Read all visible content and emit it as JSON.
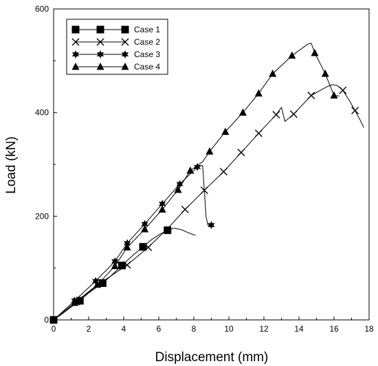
{
  "chart_data": {
    "type": "line",
    "title": "",
    "xlabel": "Displacement (mm)",
    "ylabel": "Load (kN)",
    "xlim": [
      0,
      18
    ],
    "ylim": [
      0,
      600
    ],
    "x_ticks": [
      "0",
      "2",
      "4",
      "6",
      "8",
      "10",
      "12",
      "14",
      "16",
      "18"
    ],
    "y_ticks": [
      "0",
      "200",
      "400",
      "600"
    ],
    "grid": false,
    "legend_position": "top-left",
    "series": [
      {
        "name": "Case 1",
        "marker": "square",
        "points": [
          [
            0,
            0
          ],
          [
            0.5,
            12
          ],
          [
            1.0,
            25
          ],
          [
            1.5,
            37
          ],
          [
            2.0,
            52
          ],
          [
            2.5,
            64
          ],
          [
            2.8,
            71
          ],
          [
            3.3,
            86
          ],
          [
            3.9,
            105
          ],
          [
            4.5,
            124
          ],
          [
            5.1,
            141
          ],
          [
            5.6,
            155
          ],
          [
            6.1,
            166
          ],
          [
            6.5,
            173
          ],
          [
            6.9,
            177
          ],
          [
            7.3,
            174
          ],
          [
            7.7,
            168
          ],
          [
            8.1,
            163
          ]
        ],
        "marker_points": [
          [
            0,
            0
          ],
          [
            1.5,
            37
          ],
          [
            2.8,
            71
          ],
          [
            3.9,
            105
          ],
          [
            5.1,
            141
          ],
          [
            6.5,
            173
          ]
        ]
      },
      {
        "name": "Case 2",
        "marker": "x",
        "points": [
          [
            0,
            0
          ],
          [
            1.3,
            35
          ],
          [
            2.7,
            72
          ],
          [
            4.2,
            106
          ],
          [
            5.4,
            140
          ],
          [
            6.5,
            176
          ],
          [
            7.5,
            213
          ],
          [
            8.6,
            250
          ],
          [
            9.7,
            286
          ],
          [
            10.7,
            323
          ],
          [
            11.7,
            360
          ],
          [
            12.7,
            396
          ],
          [
            13.0,
            410
          ],
          [
            13.2,
            383
          ],
          [
            13.7,
            397
          ],
          [
            14.7,
            433
          ],
          [
            15.6,
            450
          ],
          [
            15.9,
            454
          ],
          [
            16.2,
            452
          ],
          [
            16.5,
            443
          ],
          [
            16.9,
            422
          ],
          [
            17.2,
            404
          ],
          [
            17.5,
            385
          ],
          [
            17.7,
            371
          ]
        ],
        "marker_points": [
          [
            0,
            0
          ],
          [
            1.3,
            35
          ],
          [
            2.7,
            72
          ],
          [
            4.2,
            106
          ],
          [
            5.4,
            140
          ],
          [
            7.5,
            213
          ],
          [
            8.6,
            250
          ],
          [
            9.7,
            286
          ],
          [
            10.7,
            323
          ],
          [
            11.7,
            360
          ],
          [
            12.7,
            396
          ],
          [
            13.7,
            397
          ],
          [
            14.7,
            433
          ],
          [
            16.5,
            443
          ],
          [
            17.2,
            404
          ]
        ]
      },
      {
        "name": "Case 3",
        "marker": "star",
        "points": [
          [
            0,
            0
          ],
          [
            1.2,
            37
          ],
          [
            2.4,
            75
          ],
          [
            3.5,
            113
          ],
          [
            4.2,
            148
          ],
          [
            5.2,
            185
          ],
          [
            6.2,
            224
          ],
          [
            7.2,
            262
          ],
          [
            8.2,
            295
          ],
          [
            8.5,
            298
          ],
          [
            8.6,
            250
          ],
          [
            8.7,
            200
          ],
          [
            8.8,
            183
          ],
          [
            9.0,
            183
          ]
        ],
        "marker_points": [
          [
            0,
            0
          ],
          [
            1.2,
            37
          ],
          [
            2.4,
            75
          ],
          [
            3.5,
            113
          ],
          [
            4.2,
            148
          ],
          [
            5.2,
            185
          ],
          [
            6.2,
            224
          ],
          [
            7.2,
            262
          ],
          [
            8.2,
            295
          ],
          [
            9.0,
            183
          ]
        ]
      },
      {
        "name": "Case 4",
        "marker": "triangle",
        "points": [
          [
            0,
            0
          ],
          [
            1.2,
            33
          ],
          [
            2.5,
            68
          ],
          [
            3.5,
            104
          ],
          [
            4.2,
            140
          ],
          [
            5.2,
            175
          ],
          [
            6.2,
            213
          ],
          [
            7.1,
            251
          ],
          [
            7.8,
            288
          ],
          [
            8.5,
            305
          ],
          [
            8.9,
            325
          ],
          [
            9.8,
            363
          ],
          [
            10.8,
            400
          ],
          [
            11.7,
            437
          ],
          [
            12.5,
            475
          ],
          [
            13.6,
            510
          ],
          [
            14.5,
            532
          ],
          [
            14.7,
            534
          ],
          [
            14.9,
            515
          ],
          [
            15.5,
            475
          ],
          [
            16.0,
            433
          ],
          [
            16.3,
            432
          ]
        ],
        "marker_points": [
          [
            0,
            0
          ],
          [
            1.2,
            33
          ],
          [
            2.5,
            68
          ],
          [
            3.5,
            104
          ],
          [
            4.2,
            140
          ],
          [
            5.2,
            175
          ],
          [
            6.2,
            213
          ],
          [
            7.1,
            251
          ],
          [
            7.8,
            288
          ],
          [
            8.9,
            325
          ],
          [
            9.8,
            363
          ],
          [
            10.8,
            400
          ],
          [
            11.7,
            437
          ],
          [
            12.5,
            475
          ],
          [
            13.6,
            510
          ],
          [
            14.9,
            515
          ],
          [
            15.5,
            475
          ],
          [
            16.0,
            433
          ]
        ]
      }
    ]
  }
}
